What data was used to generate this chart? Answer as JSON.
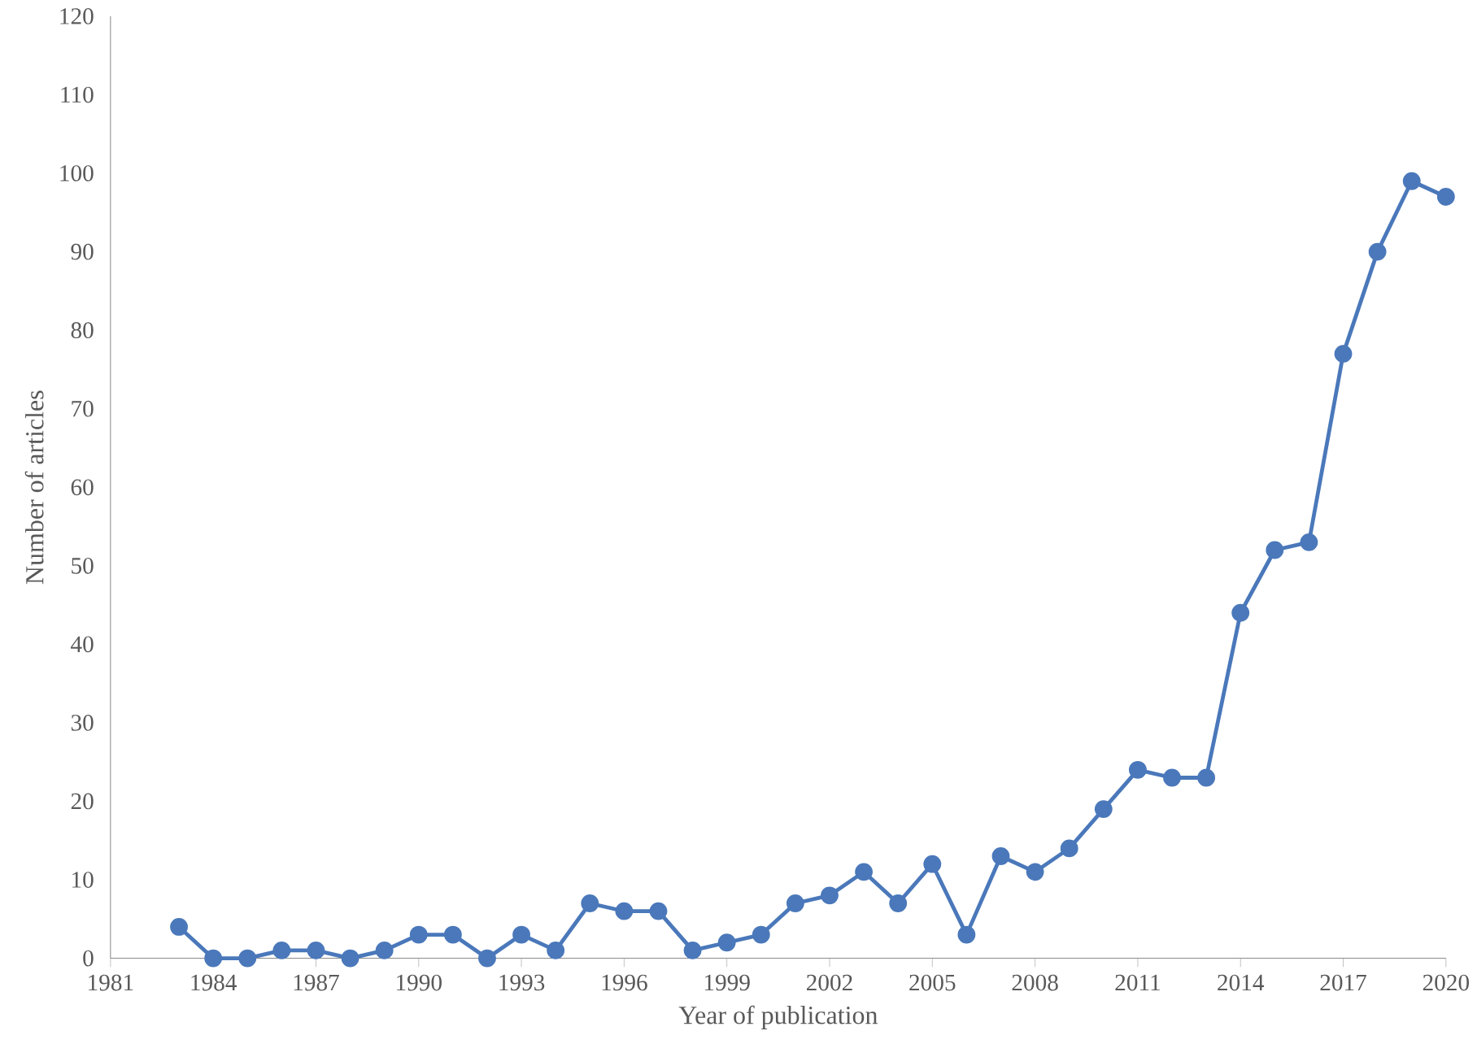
{
  "chart_data": {
    "type": "line",
    "xlabel": "Year of publication",
    "ylabel": "Number of articles",
    "x": [
      1983,
      1984,
      1985,
      1986,
      1987,
      1988,
      1989,
      1990,
      1991,
      1992,
      1993,
      1994,
      1995,
      1996,
      1997,
      1998,
      1999,
      2000,
      2001,
      2002,
      2003,
      2004,
      2005,
      2006,
      2007,
      2008,
      2009,
      2010,
      2011,
      2012,
      2013,
      2014,
      2015,
      2016,
      2017,
      2018,
      2019,
      2020
    ],
    "series": [
      {
        "color": "#4a78ba",
        "values": [
          4,
          0,
          0,
          1,
          1,
          0,
          1,
          3,
          3,
          0,
          3,
          1,
          7,
          6,
          6,
          1,
          2,
          3,
          7,
          8,
          11,
          7,
          12,
          3,
          13,
          11,
          14,
          19,
          24,
          23,
          23,
          44,
          52,
          53,
          77,
          90,
          99,
          97
        ]
      }
    ],
    "xlim": [
      1981,
      2020
    ],
    "xticks": [
      1981,
      1984,
      1987,
      1990,
      1993,
      1996,
      1999,
      2002,
      2005,
      2008,
      2011,
      2014,
      2017,
      2020
    ],
    "ylim": [
      0,
      120
    ],
    "yticks": [
      0,
      10,
      20,
      30,
      40,
      50,
      60,
      70,
      80,
      90,
      100,
      110,
      120
    ],
    "grid": false,
    "marker": "circle",
    "line_style": "solid"
  }
}
